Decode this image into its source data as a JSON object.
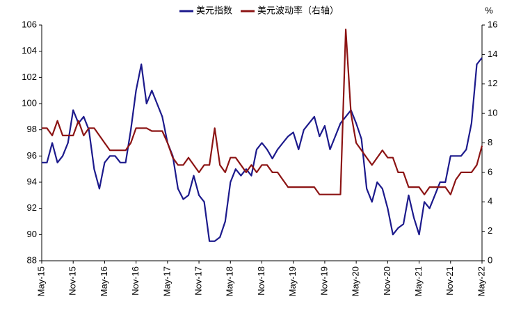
{
  "chart_data": {
    "type": "line",
    "categories": [
      "May-15",
      null,
      null,
      null,
      null,
      null,
      "Nov-15",
      null,
      null,
      null,
      null,
      null,
      "May-16",
      null,
      null,
      null,
      null,
      null,
      "Nov-16",
      null,
      null,
      null,
      null,
      null,
      "May-17",
      null,
      null,
      null,
      null,
      null,
      "Nov-17",
      null,
      null,
      null,
      null,
      null,
      "May-18",
      null,
      null,
      null,
      null,
      null,
      "Nov-18",
      null,
      null,
      null,
      null,
      null,
      "May-19",
      null,
      null,
      null,
      null,
      null,
      "Nov-19",
      null,
      null,
      null,
      null,
      null,
      "May-20",
      null,
      null,
      null,
      null,
      null,
      "Nov-20",
      null,
      null,
      null,
      null,
      null,
      "May-21",
      null,
      null,
      null,
      null,
      null,
      "Nov-21",
      null,
      null,
      null,
      null,
      null,
      "May-22"
    ],
    "series": [
      {
        "name": "美元指数",
        "color": "#1c1a8c",
        "values": [
          95.5,
          95.5,
          97,
          95.5,
          96,
          97,
          99.5,
          98.5,
          99,
          98,
          95,
          93.5,
          95.5,
          96,
          96,
          95.5,
          95.5,
          98,
          101,
          103,
          100,
          101,
          100,
          99,
          97,
          96,
          93.5,
          92.7,
          93,
          94.5,
          93,
          92.5,
          89.5,
          89.5,
          89.8,
          91,
          94,
          95,
          94.5,
          95,
          94.5,
          96.5,
          97,
          96.5,
          95.8,
          96.5,
          97,
          97.5,
          97.8,
          96.5,
          98,
          98.5,
          99,
          97.5,
          98.3,
          96.5,
          97.5,
          98.5,
          99,
          99.5,
          98.5,
          97.3,
          93.5,
          92.5,
          94,
          93.5,
          92,
          90,
          90.5,
          90.8,
          93,
          91.3,
          90,
          92.5,
          92,
          93,
          94,
          94,
          96,
          96,
          96,
          96.5,
          98.5,
          103,
          103.5
        ]
      },
      {
        "name": "美元波动率（右轴）",
        "color": "#8c1414",
        "axis": "y2",
        "values": [
          9,
          9,
          8.5,
          9.5,
          8.5,
          8.5,
          8.5,
          9.5,
          8.5,
          9,
          9,
          8.5,
          8,
          7.5,
          7.5,
          7.5,
          7.5,
          8,
          9,
          9,
          9,
          8.8,
          8.8,
          8.8,
          8,
          7,
          6.5,
          6.5,
          7,
          6.5,
          6,
          6.5,
          6.5,
          9,
          6.5,
          6,
          7,
          7,
          6.5,
          6,
          6.5,
          6,
          6.5,
          6.5,
          6,
          6,
          5.5,
          5,
          5,
          5,
          5,
          5,
          5,
          4.5,
          4.5,
          4.5,
          4.5,
          4.5,
          15.7,
          10,
          8,
          7.5,
          7,
          6.5,
          7,
          7.5,
          7,
          7,
          6,
          6,
          5,
          5,
          5,
          4.5,
          5,
          5,
          5,
          5,
          4.5,
          5.5,
          6,
          6,
          6,
          6.5,
          7.8
        ]
      }
    ],
    "ylim": [
      88,
      106
    ],
    "yticks": [
      88,
      90,
      92,
      94,
      96,
      98,
      100,
      102,
      104,
      106
    ],
    "y2lim": [
      0,
      16
    ],
    "y2ticks": [
      0,
      2,
      4,
      6,
      8,
      10,
      12,
      14,
      16
    ],
    "y2_unit": "%",
    "legend": "top",
    "grid": false
  }
}
